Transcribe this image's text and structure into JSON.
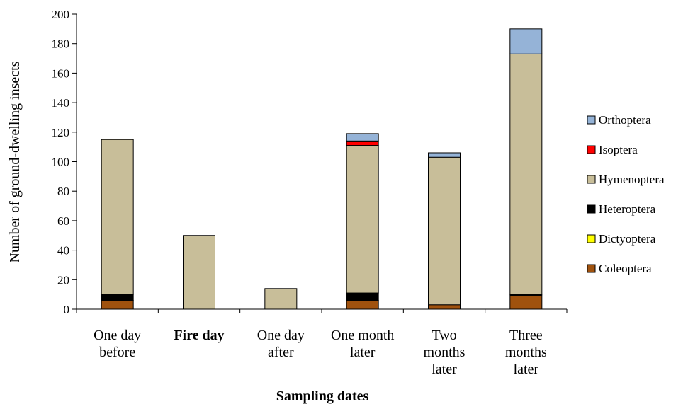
{
  "chart_data": {
    "type": "bar",
    "stacked": true,
    "title": "",
    "xlabel": "Sampling dates",
    "ylabel": "Number of ground-dwelling insects",
    "ylim": [
      0,
      200
    ],
    "yticks": [
      0,
      20,
      40,
      60,
      80,
      100,
      120,
      140,
      160,
      180,
      200
    ],
    "categories": [
      [
        "One day",
        "before"
      ],
      [
        "Fire day"
      ],
      [
        "One day",
        "after"
      ],
      [
        "One month",
        "later"
      ],
      [
        "Two",
        "months",
        "later"
      ],
      [
        "Three",
        "months",
        "later"
      ]
    ],
    "series": [
      {
        "name": "Coleoptera",
        "color": "#A0520E",
        "values": [
          6,
          0,
          0,
          6,
          3,
          9
        ]
      },
      {
        "name": "Dictyoptera",
        "color": "#FFFF00",
        "values": [
          0,
          0,
          0,
          0,
          0,
          0
        ]
      },
      {
        "name": "Heteroptera",
        "color": "#000000",
        "values": [
          4,
          0,
          0,
          5,
          0,
          1
        ]
      },
      {
        "name": "Hymenoptera",
        "color": "#C8BE99",
        "values": [
          105,
          50,
          14,
          100,
          100,
          163
        ]
      },
      {
        "name": "Isoptera",
        "color": "#FF0000",
        "values": [
          0,
          0,
          0,
          3,
          0,
          0
        ]
      },
      {
        "name": "Orthoptera",
        "color": "#95B3D7",
        "values": [
          0,
          0,
          0,
          5,
          3,
          17
        ]
      }
    ],
    "legend": {
      "placement": "right",
      "order": [
        "Orthoptera",
        "Isoptera",
        "Hymenoptera",
        "Heteroptera",
        "Dictyoptera",
        "Coleoptera"
      ]
    },
    "grid": false
  }
}
